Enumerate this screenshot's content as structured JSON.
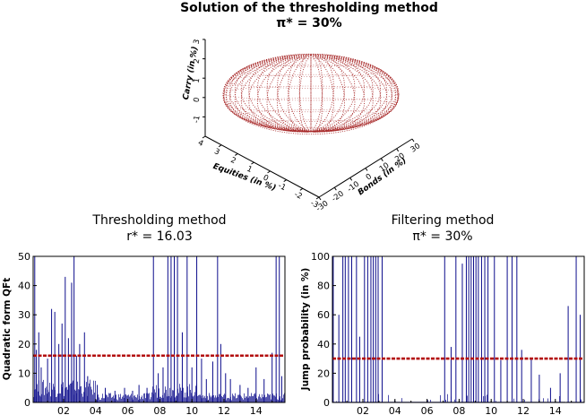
{
  "chart_data": [
    {
      "type": "scatter3d",
      "title": "Solution of the thresholding method",
      "subtitle": "π* = 30%",
      "xlabel": "Equities (in %)",
      "ylabel": "Bonds (in %)",
      "zlabel": "Carry (in %)",
      "xticks": [
        "4",
        "3",
        "2",
        "1",
        "0",
        "-1",
        "-2",
        "-3"
      ],
      "yticks": [
        "-30",
        "-20",
        "-10",
        "0",
        "10",
        "20",
        "30"
      ],
      "zticks": [
        "-1",
        "0",
        "1",
        "2",
        "3"
      ],
      "surface": "ellipsoid",
      "grid": false,
      "color": "#a31f1f"
    },
    {
      "type": "bar",
      "title": "Thresholding method",
      "subtitle": "r* = 16.03",
      "ylabel": "Quadratic form QFt",
      "ylim": [
        0,
        50
      ],
      "yticks": [
        0,
        10,
        20,
        30,
        40,
        50
      ],
      "xticks": [
        "02",
        "04",
        "06",
        "08",
        "10",
        "12",
        "14"
      ],
      "xlim": [
        2000.1,
        2015.8
      ],
      "threshold": 16.03,
      "bar_color": "#0d0d8c",
      "threshold_color": "#b30d0d",
      "spikes": [
        [
          2000.2,
          50
        ],
        [
          2000.3,
          18
        ],
        [
          2000.45,
          24
        ],
        [
          2000.6,
          12
        ],
        [
          2001.0,
          15
        ],
        [
          2001.25,
          32
        ],
        [
          2001.45,
          31
        ],
        [
          2001.7,
          20
        ],
        [
          2001.9,
          27
        ],
        [
          2002.1,
          43
        ],
        [
          2002.3,
          22
        ],
        [
          2002.5,
          41
        ],
        [
          2002.65,
          50
        ],
        [
          2002.8,
          16
        ],
        [
          2003.0,
          20
        ],
        [
          2003.3,
          24
        ],
        [
          2003.5,
          9
        ],
        [
          2004.1,
          6
        ],
        [
          2004.6,
          5
        ],
        [
          2005.2,
          4
        ],
        [
          2005.8,
          5
        ],
        [
          2006.3,
          4
        ],
        [
          2006.7,
          6
        ],
        [
          2007.2,
          5
        ],
        [
          2007.6,
          50
        ],
        [
          2007.9,
          10
        ],
        [
          2008.2,
          12
        ],
        [
          2008.5,
          50
        ],
        [
          2008.7,
          50
        ],
        [
          2008.9,
          50
        ],
        [
          2009.1,
          50
        ],
        [
          2009.4,
          24
        ],
        [
          2009.7,
          50
        ],
        [
          2010.0,
          12
        ],
        [
          2010.3,
          50
        ],
        [
          2010.6,
          15
        ],
        [
          2010.9,
          8
        ],
        [
          2011.3,
          14
        ],
        [
          2011.6,
          50
        ],
        [
          2011.8,
          20
        ],
        [
          2012.1,
          10
        ],
        [
          2012.4,
          8
        ],
        [
          2013.0,
          6
        ],
        [
          2013.5,
          5
        ],
        [
          2014.0,
          12
        ],
        [
          2014.5,
          8
        ],
        [
          2015.0,
          17
        ],
        [
          2015.25,
          50
        ],
        [
          2015.45,
          50
        ],
        [
          2015.6,
          9
        ]
      ]
    },
    {
      "type": "bar",
      "title": "Filtering method",
      "subtitle": "π* = 30%",
      "ylabel": "Jump probability (in %)",
      "ylim": [
        0,
        100
      ],
      "yticks": [
        0,
        20,
        40,
        60,
        80,
        100
      ],
      "xticks": [
        "02",
        "04",
        "06",
        "08",
        "10",
        "12",
        "14"
      ],
      "xlim": [
        2000.1,
        2015.8
      ],
      "threshold": 30,
      "bar_color": "#0d0d8c",
      "threshold_color": "#b30d0d",
      "spikes": [
        [
          2000.15,
          100
        ],
        [
          2000.5,
          60
        ],
        [
          2000.75,
          100
        ],
        [
          2000.9,
          100
        ],
        [
          2001.1,
          100
        ],
        [
          2001.3,
          100
        ],
        [
          2001.6,
          100
        ],
        [
          2001.8,
          45
        ],
        [
          2002.1,
          100
        ],
        [
          2002.3,
          100
        ],
        [
          2002.5,
          100
        ],
        [
          2002.65,
          100
        ],
        [
          2002.8,
          100
        ],
        [
          2002.95,
          100
        ],
        [
          2003.2,
          100
        ],
        [
          2007.1,
          100
        ],
        [
          2007.5,
          38
        ],
        [
          2007.8,
          100
        ],
        [
          2008.2,
          95
        ],
        [
          2008.45,
          100
        ],
        [
          2008.6,
          100
        ],
        [
          2008.75,
          100
        ],
        [
          2008.9,
          100
        ],
        [
          2009.05,
          100
        ],
        [
          2009.2,
          100
        ],
        [
          2009.4,
          100
        ],
        [
          2009.6,
          100
        ],
        [
          2009.8,
          100
        ],
        [
          2010.2,
          100
        ],
        [
          2010.6,
          29
        ],
        [
          2011.0,
          100
        ],
        [
          2011.3,
          100
        ],
        [
          2011.6,
          100
        ],
        [
          2011.9,
          36
        ],
        [
          2012.5,
          30
        ],
        [
          2013.0,
          19
        ],
        [
          2013.7,
          10
        ],
        [
          2014.3,
          20
        ],
        [
          2014.8,
          66
        ],
        [
          2015.3,
          100
        ],
        [
          2015.55,
          60
        ]
      ]
    }
  ]
}
